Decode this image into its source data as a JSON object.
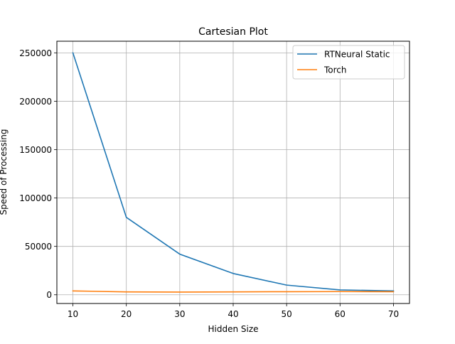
{
  "chart_data": {
    "type": "line",
    "title": "Cartesian Plot",
    "xlabel": "Hidden Size",
    "ylabel": "Speed of Processing",
    "x": [
      10,
      20,
      30,
      40,
      50,
      60,
      70
    ],
    "xlim": [
      7,
      73
    ],
    "ylim": [
      -9000,
      262000
    ],
    "xticks": [
      10,
      20,
      30,
      40,
      50,
      60,
      70
    ],
    "xtick_labels": [
      "10",
      "20",
      "30",
      "40",
      "50",
      "60",
      "70"
    ],
    "yticks": [
      0,
      50000,
      100000,
      150000,
      200000,
      250000
    ],
    "ytick_labels": [
      "0",
      "50000",
      "100000",
      "150000",
      "200000",
      "250000"
    ],
    "grid": true,
    "legend_position": "top-right",
    "series": [
      {
        "name": "RTNeural Static",
        "color": "#1f77b4",
        "values": [
          250000,
          80000,
          42000,
          22000,
          10000,
          5000,
          4000
        ]
      },
      {
        "name": "Torch",
        "color": "#ff7f0e",
        "values": [
          4000,
          3000,
          2800,
          3000,
          3200,
          3300,
          3200
        ]
      }
    ]
  }
}
